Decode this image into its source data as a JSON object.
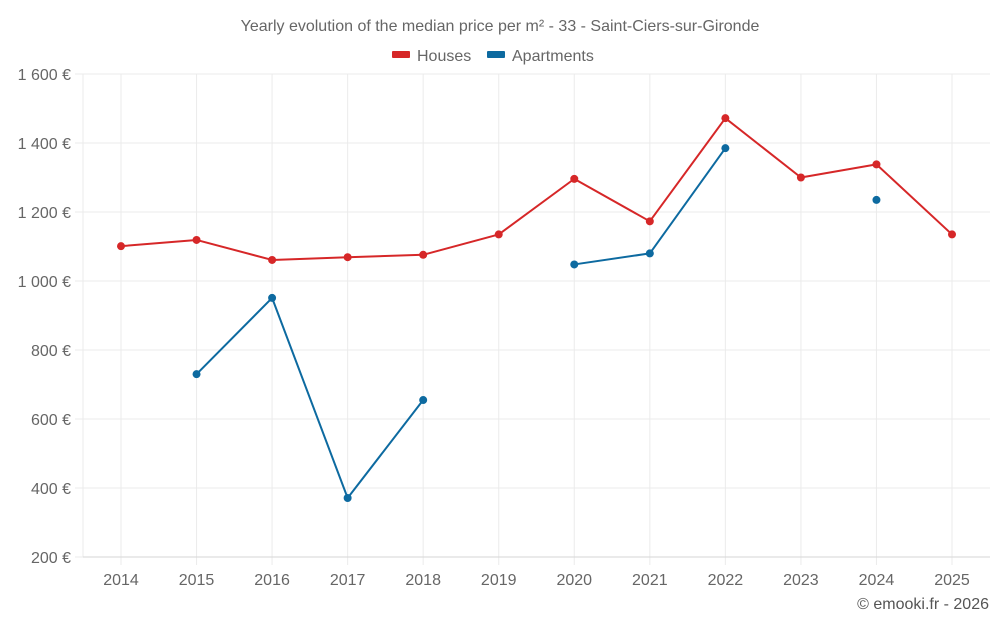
{
  "chart_data": {
    "type": "line",
    "title": "Yearly evolution of the median price per m² - 33 - Saint-Ciers-sur-Gironde",
    "xlabel": "",
    "ylabel": "",
    "categories": [
      "2014",
      "2015",
      "2016",
      "2017",
      "2018",
      "2019",
      "2020",
      "2021",
      "2022",
      "2023",
      "2024",
      "2025"
    ],
    "ylim": [
      200,
      1600
    ],
    "yticks": [
      200,
      400,
      600,
      800,
      1000,
      1200,
      1400,
      1600
    ],
    "ytick_labels": [
      "200 €",
      "400 €",
      "600 €",
      "800 €",
      "1 000 €",
      "1 200 €",
      "1 400 €",
      "1 600 €"
    ],
    "grid": true,
    "legend_position": "top-center",
    "series": [
      {
        "name": "Houses",
        "color": "#d62728",
        "values": [
          1101,
          1119,
          1061,
          1069,
          1076,
          1135,
          1296,
          1173,
          1472,
          1300,
          1338,
          1135
        ]
      },
      {
        "name": "Apartments",
        "color": "#0d6aa0",
        "values": [
          null,
          730,
          951,
          371,
          655,
          null,
          1048,
          1080,
          1385,
          null,
          1235,
          null
        ]
      }
    ],
    "credit": "© emooki.fr - 2026"
  }
}
